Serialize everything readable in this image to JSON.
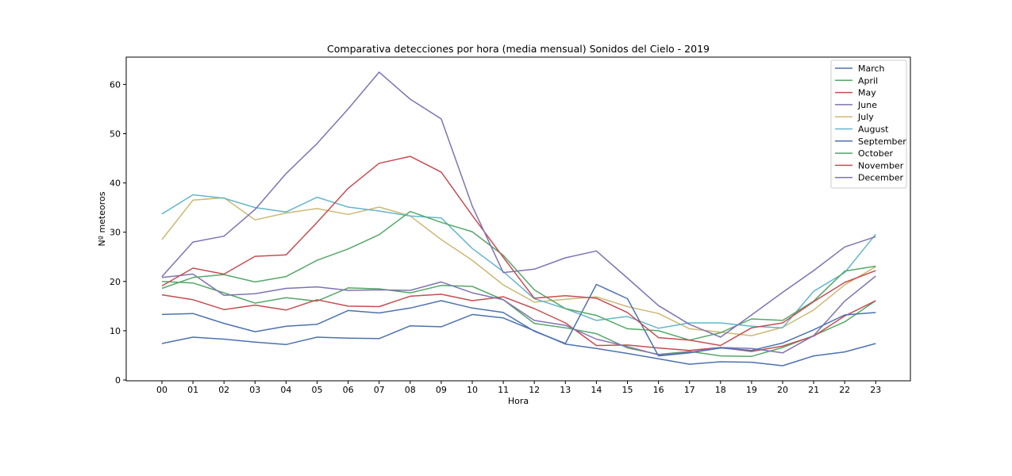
{
  "chart_data": {
    "type": "line",
    "title": "Comparativa detecciones por hora (media mensual) Sonidos del Cielo - 2019",
    "xlabel": "Hora",
    "ylabel": "Nº meteoros",
    "ylim": [
      0,
      65
    ],
    "yticks": [
      0,
      10,
      20,
      30,
      40,
      50,
      60
    ],
    "grid": false,
    "legend_position": "top-right",
    "categories": [
      "00",
      "01",
      "02",
      "03",
      "04",
      "05",
      "06",
      "07",
      "08",
      "09",
      "10",
      "11",
      "12",
      "13",
      "14",
      "15",
      "16",
      "17",
      "18",
      "19",
      "20",
      "21",
      "22",
      "23"
    ],
    "series": [
      {
        "name": "March",
        "color": "#4c72b0",
        "values": [
          7.4,
          8.7,
          8.3,
          7.7,
          7.2,
          8.7,
          8.5,
          8.4,
          11.0,
          10.8,
          13.3,
          12.6,
          10.0,
          7.3,
          6.4,
          5.4,
          4.3,
          3.2,
          3.7,
          3.6,
          2.9,
          4.9,
          5.7,
          7.4
        ]
      },
      {
        "name": "April",
        "color": "#55a868",
        "values": [
          20.0,
          19.7,
          17.7,
          15.6,
          16.7,
          16.0,
          18.7,
          18.5,
          17.7,
          19.2,
          19.0,
          16.3,
          11.5,
          10.6,
          9.4,
          6.5,
          5.2,
          5.8,
          4.9,
          4.8,
          6.6,
          9.0,
          11.8,
          16.1
        ]
      },
      {
        "name": "May",
        "color": "#c44e52",
        "values": [
          17.3,
          16.3,
          14.3,
          15.2,
          14.2,
          16.3,
          15.0,
          14.9,
          17.0,
          17.4,
          16.1,
          16.9,
          14.5,
          11.6,
          7.0,
          7.1,
          6.5,
          6.0,
          6.6,
          5.8,
          6.9,
          8.9,
          13.0,
          16.1
        ]
      },
      {
        "name": "June",
        "color": "#8172b2",
        "values": [
          20.8,
          21.5,
          17.2,
          17.5,
          18.6,
          18.9,
          18.2,
          18.3,
          18.2,
          19.9,
          17.7,
          16.3,
          12.1,
          11.1,
          8.3,
          6.8,
          5.1,
          5.6,
          6.6,
          6.4,
          5.5,
          9.0,
          16.0,
          21.1
        ]
      },
      {
        "name": "July",
        "color": "#ccb974",
        "values": [
          28.5,
          36.5,
          37.0,
          32.5,
          33.9,
          34.8,
          33.6,
          35.1,
          33.3,
          28.5,
          24.3,
          19.3,
          15.8,
          16.4,
          16.9,
          14.9,
          13.5,
          10.4,
          9.7,
          9.0,
          10.7,
          14.2,
          19.3,
          23.0
        ]
      },
      {
        "name": "August",
        "color": "#64b5cd",
        "values": [
          33.7,
          37.6,
          36.9,
          35.0,
          34.1,
          37.1,
          35.1,
          34.3,
          33.3,
          32.9,
          26.7,
          22.0,
          16.5,
          14.5,
          12.1,
          12.9,
          10.5,
          11.6,
          11.6,
          10.9,
          10.6,
          18.0,
          21.8,
          29.6
        ]
      },
      {
        "name": "September",
        "color": "#4c72b0",
        "values": [
          13.3,
          13.5,
          11.5,
          9.8,
          10.9,
          11.3,
          14.1,
          13.6,
          14.6,
          16.1,
          14.6,
          13.7,
          9.9,
          7.4,
          19.4,
          16.5,
          4.9,
          5.5,
          6.5,
          6.0,
          7.5,
          10.2,
          13.2,
          13.7
        ]
      },
      {
        "name": "October",
        "color": "#55a868",
        "values": [
          18.6,
          20.8,
          21.4,
          19.9,
          21.0,
          24.3,
          26.6,
          29.5,
          34.2,
          32.0,
          30.1,
          25.3,
          18.3,
          14.5,
          13.1,
          10.4,
          10.0,
          8.1,
          9.6,
          12.4,
          12.1,
          16.0,
          22.1,
          23.1
        ]
      },
      {
        "name": "November",
        "color": "#c44e52",
        "values": [
          19.1,
          22.7,
          21.5,
          25.1,
          25.4,
          32.0,
          38.9,
          44.0,
          45.4,
          42.2,
          33.4,
          24.9,
          16.6,
          17.1,
          16.6,
          13.7,
          8.6,
          8.1,
          7.0,
          10.6,
          11.6,
          15.9,
          19.8,
          22.2
        ]
      },
      {
        "name": "December",
        "color": "#8172b2",
        "values": [
          21.0,
          28.0,
          29.2,
          34.6,
          41.9,
          48.0,
          55.0,
          62.5,
          57.0,
          53.0,
          35.3,
          21.8,
          22.5,
          24.8,
          26.2,
          20.7,
          15.1,
          11.3,
          8.7,
          13.2,
          17.8,
          22.2,
          27.0,
          29.1
        ]
      }
    ]
  }
}
